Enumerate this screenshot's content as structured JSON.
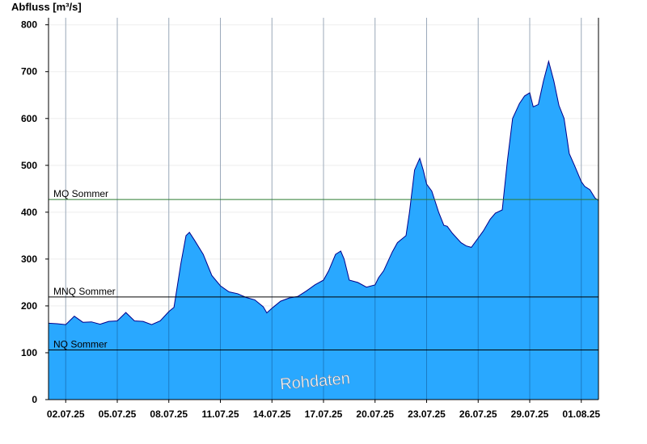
{
  "chart_data": {
    "type": "area",
    "ylabel": "Abfluss [m³/s]",
    "ylim": [
      0,
      815
    ],
    "yticks": [
      0,
      100,
      200,
      300,
      400,
      500,
      600,
      700,
      800
    ],
    "xticks": [
      "02.07.25",
      "05.07.25",
      "08.07.25",
      "11.07.25",
      "14.07.25",
      "17.07.25",
      "20.07.25",
      "23.07.25",
      "26.07.25",
      "29.07.25",
      "01.08.25"
    ],
    "x_start_label": "02.07.25",
    "x_end_label": "01.08.25",
    "grid": true,
    "fill_color": "#29a8ff",
    "line_color": "#00008b",
    "watermark": "Rohdaten",
    "reference_lines": [
      {
        "name": "MQ Sommer",
        "value": 427,
        "color": "#2e7d32"
      },
      {
        "name": "MNQ Sommer",
        "value": 219,
        "color": "#000000"
      },
      {
        "name": "NQ Sommer",
        "value": 106,
        "color": "#000000"
      }
    ],
    "series": [
      {
        "values": [
          [
            0.0,
            163
          ],
          [
            0.5,
            162
          ],
          [
            1.0,
            160
          ],
          [
            1.5,
            178
          ],
          [
            2.0,
            165
          ],
          [
            2.5,
            166
          ],
          [
            3.0,
            161
          ],
          [
            3.5,
            167
          ],
          [
            4.0,
            168
          ],
          [
            4.5,
            186
          ],
          [
            5.0,
            168
          ],
          [
            5.5,
            167
          ],
          [
            6.0,
            160
          ],
          [
            6.5,
            168
          ],
          [
            7.0,
            188
          ],
          [
            7.3,
            197
          ],
          [
            7.7,
            290
          ],
          [
            8.0,
            350
          ],
          [
            8.2,
            357
          ],
          [
            8.5,
            340
          ],
          [
            9.0,
            310
          ],
          [
            9.5,
            265
          ],
          [
            10.0,
            243
          ],
          [
            10.5,
            230
          ],
          [
            11.0,
            226
          ],
          [
            11.5,
            218
          ],
          [
            12.0,
            213
          ],
          [
            12.5,
            198
          ],
          [
            12.7,
            185
          ],
          [
            13.0,
            195
          ],
          [
            13.5,
            210
          ],
          [
            14.0,
            217
          ],
          [
            14.5,
            220
          ],
          [
            15.0,
            232
          ],
          [
            15.5,
            245
          ],
          [
            16.0,
            255
          ],
          [
            16.3,
            275
          ],
          [
            16.7,
            310
          ],
          [
            17.0,
            317
          ],
          [
            17.2,
            300
          ],
          [
            17.5,
            255
          ],
          [
            18.0,
            250
          ],
          [
            18.5,
            240
          ],
          [
            19.0,
            245
          ],
          [
            19.2,
            260
          ],
          [
            19.5,
            275
          ],
          [
            20.0,
            315
          ],
          [
            20.3,
            335
          ],
          [
            20.8,
            350
          ],
          [
            21.0,
            400
          ],
          [
            21.3,
            490
          ],
          [
            21.6,
            515
          ],
          [
            21.8,
            490
          ],
          [
            22.0,
            460
          ],
          [
            22.3,
            445
          ],
          [
            22.7,
            400
          ],
          [
            23.0,
            372
          ],
          [
            23.2,
            370
          ],
          [
            23.5,
            355
          ],
          [
            24.0,
            335
          ],
          [
            24.3,
            328
          ],
          [
            24.6,
            325
          ],
          [
            25.0,
            345
          ],
          [
            25.3,
            360
          ],
          [
            25.7,
            385
          ],
          [
            26.0,
            398
          ],
          [
            26.4,
            405
          ],
          [
            26.7,
            510
          ],
          [
            27.0,
            600
          ],
          [
            27.4,
            632
          ],
          [
            27.7,
            648
          ],
          [
            28.0,
            655
          ],
          [
            28.2,
            625
          ],
          [
            28.5,
            630
          ],
          [
            28.8,
            680
          ],
          [
            29.1,
            722
          ],
          [
            29.4,
            680
          ],
          [
            29.7,
            628
          ],
          [
            30.0,
            600
          ],
          [
            30.3,
            525
          ],
          [
            30.6,
            500
          ],
          [
            31.0,
            465
          ],
          [
            31.2,
            455
          ],
          [
            31.5,
            448
          ],
          [
            31.8,
            430
          ],
          [
            32.0,
            425
          ]
        ]
      }
    ]
  }
}
